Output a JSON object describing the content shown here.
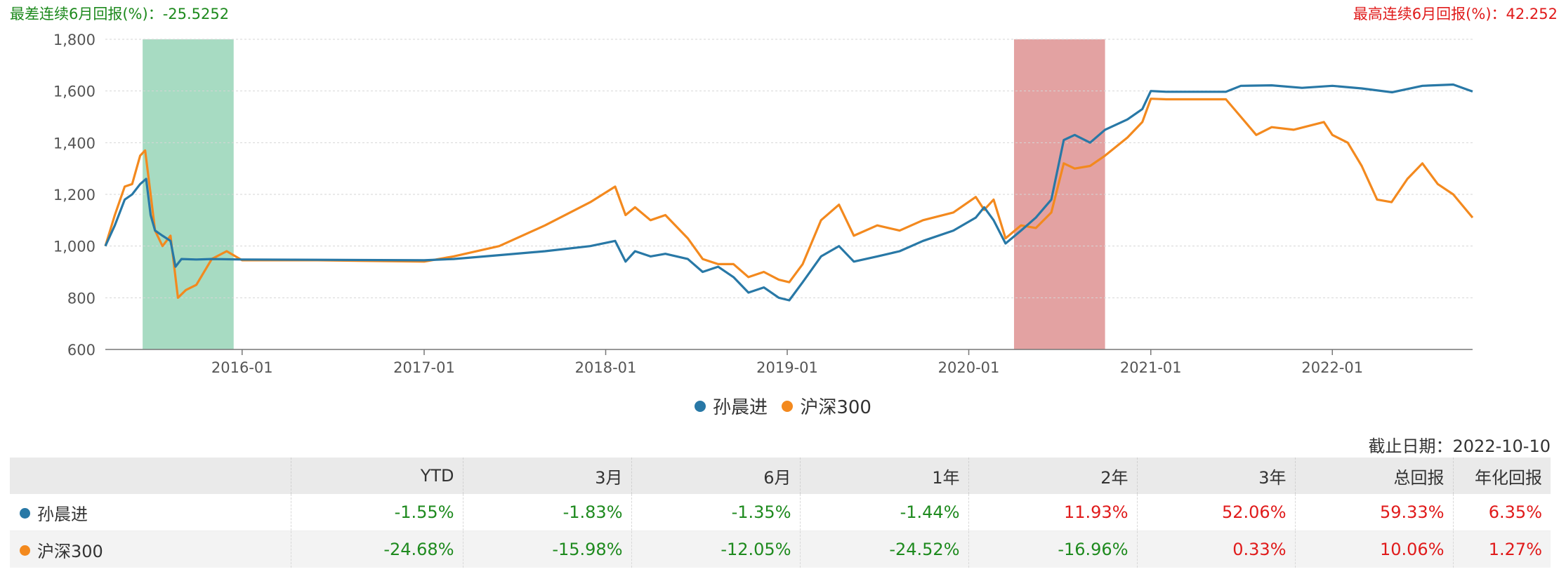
{
  "header": {
    "worst_label": "最差连续6月回报(%)：-25.5252",
    "best_label": "最高连续6月回报(%)：42.252"
  },
  "colors": {
    "fund": "#2878a6",
    "index": "#f3891e",
    "worst_band": "#a7dbc2",
    "best_band": "#e3a2a2",
    "positive": "#e01b1b",
    "negative": "#1e8a1e"
  },
  "chart_data": {
    "type": "line",
    "x_axis": {
      "min": "2015-04-01",
      "max": "2022-10-10",
      "ticks": [
        "2016-01",
        "2017-01",
        "2018-01",
        "2019-01",
        "2020-01",
        "2021-01",
        "2022-01"
      ]
    },
    "y_axis": {
      "min": 600,
      "max": 1800,
      "ticks": [
        "600",
        "800",
        "1,000",
        "1,200",
        "1,400",
        "1,600",
        "1,800"
      ],
      "grid": true
    },
    "bands": [
      {
        "name": "最差连续6月",
        "start": "2015-06-15",
        "end": "2015-12-15"
      },
      {
        "name": "最高连续6月",
        "start": "2020-04-01",
        "end": "2020-10-01"
      }
    ],
    "legend_position": "bottom",
    "series": [
      {
        "name": "孙晨进",
        "points": [
          [
            "2015-04-01",
            1000
          ],
          [
            "2015-04-20",
            1080
          ],
          [
            "2015-05-10",
            1180
          ],
          [
            "2015-05-25",
            1200
          ],
          [
            "2015-06-10",
            1240
          ],
          [
            "2015-06-22",
            1260
          ],
          [
            "2015-07-01",
            1120
          ],
          [
            "2015-07-10",
            1060
          ],
          [
            "2015-07-25",
            1040
          ],
          [
            "2015-08-10",
            1020
          ],
          [
            "2015-08-20",
            920
          ],
          [
            "2015-09-01",
            950
          ],
          [
            "2015-10-01",
            948
          ],
          [
            "2015-11-01",
            950
          ],
          [
            "2016-01-01",
            948
          ],
          [
            "2016-06-01",
            947
          ],
          [
            "2017-01-01",
            945
          ],
          [
            "2017-03-01",
            950
          ],
          [
            "2017-06-01",
            965
          ],
          [
            "2017-09-01",
            980
          ],
          [
            "2017-12-01",
            1000
          ],
          [
            "2018-01-20",
            1020
          ],
          [
            "2018-02-10",
            940
          ],
          [
            "2018-03-01",
            980
          ],
          [
            "2018-04-01",
            960
          ],
          [
            "2018-05-01",
            970
          ],
          [
            "2018-06-15",
            950
          ],
          [
            "2018-07-15",
            900
          ],
          [
            "2018-08-15",
            920
          ],
          [
            "2018-09-15",
            880
          ],
          [
            "2018-10-15",
            820
          ],
          [
            "2018-11-15",
            840
          ],
          [
            "2018-12-15",
            800
          ],
          [
            "2019-01-05",
            790
          ],
          [
            "2019-02-01",
            860
          ],
          [
            "2019-03-10",
            960
          ],
          [
            "2019-04-15",
            1000
          ],
          [
            "2019-05-15",
            940
          ],
          [
            "2019-07-01",
            960
          ],
          [
            "2019-08-15",
            980
          ],
          [
            "2019-10-01",
            1020
          ],
          [
            "2019-12-01",
            1060
          ],
          [
            "2020-01-15",
            1110
          ],
          [
            "2020-02-01",
            1150
          ],
          [
            "2020-02-20",
            1100
          ],
          [
            "2020-03-15",
            1010
          ],
          [
            "2020-04-15",
            1060
          ],
          [
            "2020-05-15",
            1110
          ],
          [
            "2020-06-15",
            1180
          ],
          [
            "2020-07-10",
            1410
          ],
          [
            "2020-08-01",
            1430
          ],
          [
            "2020-09-01",
            1400
          ],
          [
            "2020-10-01",
            1450
          ],
          [
            "2020-11-15",
            1490
          ],
          [
            "2020-12-15",
            1530
          ],
          [
            "2021-01-01",
            1600
          ],
          [
            "2021-02-01",
            1597
          ],
          [
            "2021-06-01",
            1597
          ],
          [
            "2021-07-01",
            1620
          ],
          [
            "2021-09-01",
            1622
          ],
          [
            "2021-11-01",
            1612
          ],
          [
            "2022-01-01",
            1620
          ],
          [
            "2022-03-01",
            1610
          ],
          [
            "2022-05-01",
            1595
          ],
          [
            "2022-07-01",
            1620
          ],
          [
            "2022-09-01",
            1625
          ],
          [
            "2022-10-10",
            1598
          ]
        ]
      },
      {
        "name": "沪深300",
        "points": [
          [
            "2015-04-01",
            1000
          ],
          [
            "2015-04-20",
            1120
          ],
          [
            "2015-05-10",
            1230
          ],
          [
            "2015-05-25",
            1240
          ],
          [
            "2015-06-10",
            1350
          ],
          [
            "2015-06-20",
            1370
          ],
          [
            "2015-07-01",
            1200
          ],
          [
            "2015-07-10",
            1060
          ],
          [
            "2015-07-25",
            1000
          ],
          [
            "2015-08-10",
            1040
          ],
          [
            "2015-08-25",
            800
          ],
          [
            "2015-09-10",
            830
          ],
          [
            "2015-10-01",
            850
          ],
          [
            "2015-11-01",
            950
          ],
          [
            "2015-12-01",
            980
          ],
          [
            "2016-01-01",
            945
          ],
          [
            "2016-06-01",
            945
          ],
          [
            "2017-01-01",
            940
          ],
          [
            "2017-03-01",
            960
          ],
          [
            "2017-06-01",
            1000
          ],
          [
            "2017-09-01",
            1080
          ],
          [
            "2017-12-01",
            1170
          ],
          [
            "2018-01-20",
            1230
          ],
          [
            "2018-02-10",
            1120
          ],
          [
            "2018-03-01",
            1150
          ],
          [
            "2018-04-01",
            1100
          ],
          [
            "2018-05-01",
            1120
          ],
          [
            "2018-06-15",
            1030
          ],
          [
            "2018-07-15",
            950
          ],
          [
            "2018-08-15",
            930
          ],
          [
            "2018-09-15",
            930
          ],
          [
            "2018-10-15",
            880
          ],
          [
            "2018-11-15",
            900
          ],
          [
            "2018-12-15",
            870
          ],
          [
            "2019-01-05",
            860
          ],
          [
            "2019-02-01",
            930
          ],
          [
            "2019-03-10",
            1100
          ],
          [
            "2019-04-15",
            1160
          ],
          [
            "2019-05-15",
            1040
          ],
          [
            "2019-07-01",
            1080
          ],
          [
            "2019-08-15",
            1060
          ],
          [
            "2019-10-01",
            1100
          ],
          [
            "2019-12-01",
            1130
          ],
          [
            "2020-01-15",
            1190
          ],
          [
            "2020-02-01",
            1140
          ],
          [
            "2020-02-20",
            1180
          ],
          [
            "2020-03-15",
            1030
          ],
          [
            "2020-04-15",
            1080
          ],
          [
            "2020-05-15",
            1070
          ],
          [
            "2020-06-15",
            1130
          ],
          [
            "2020-07-10",
            1320
          ],
          [
            "2020-08-01",
            1300
          ],
          [
            "2020-09-01",
            1310
          ],
          [
            "2020-10-01",
            1350
          ],
          [
            "2020-11-15",
            1420
          ],
          [
            "2020-12-15",
            1480
          ],
          [
            "2021-01-01",
            1570
          ],
          [
            "2021-02-01",
            1568
          ],
          [
            "2021-06-01",
            1568
          ],
          [
            "2021-07-01",
            1500
          ],
          [
            "2021-08-01",
            1430
          ],
          [
            "2021-09-01",
            1460
          ],
          [
            "2021-10-15",
            1450
          ],
          [
            "2021-12-15",
            1480
          ],
          [
            "2022-01-01",
            1430
          ],
          [
            "2022-02-01",
            1400
          ],
          [
            "2022-03-01",
            1310
          ],
          [
            "2022-04-01",
            1180
          ],
          [
            "2022-04-30",
            1170
          ],
          [
            "2022-06-01",
            1260
          ],
          [
            "2022-07-01",
            1320
          ],
          [
            "2022-08-01",
            1240
          ],
          [
            "2022-09-01",
            1200
          ],
          [
            "2022-10-10",
            1110
          ]
        ]
      }
    ]
  },
  "legend": {
    "fund_name": "孙晨进",
    "index_name": "沪深300"
  },
  "as_of": "截止日期：2022-10-10",
  "table": {
    "headers": [
      "YTD",
      "3月",
      "6月",
      "1年",
      "2年",
      "3年",
      "总回报",
      "年化回报"
    ],
    "rows": [
      {
        "name": "孙晨进",
        "values": [
          "-1.55%",
          "-1.83%",
          "-1.35%",
          "-1.44%",
          "11.93%",
          "52.06%",
          "59.33%",
          "6.35%"
        ]
      },
      {
        "name": "沪深300",
        "values": [
          "-24.68%",
          "-15.98%",
          "-12.05%",
          "-24.52%",
          "-16.96%",
          "0.33%",
          "10.06%",
          "1.27%"
        ]
      }
    ]
  }
}
